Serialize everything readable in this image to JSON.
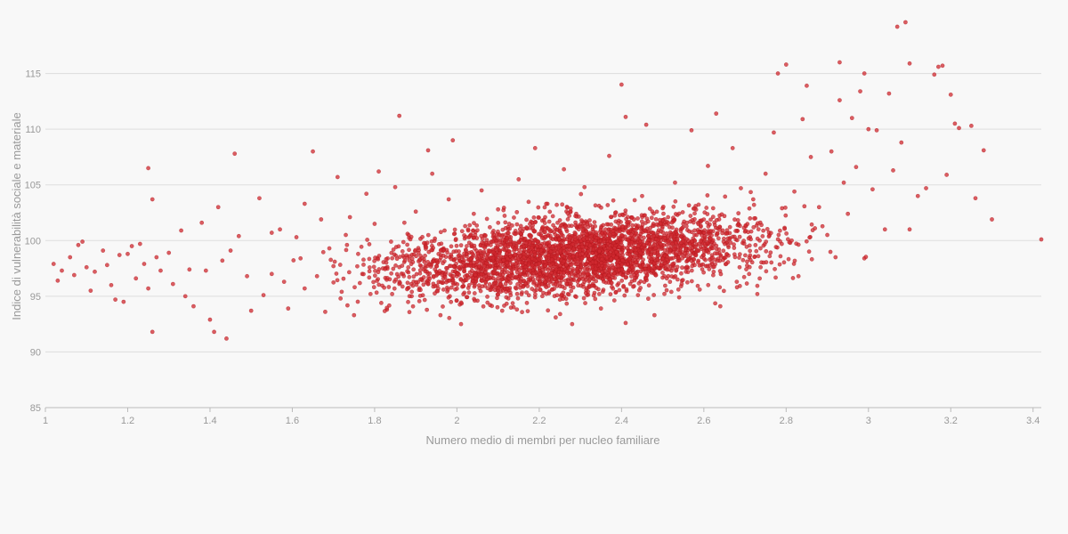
{
  "chart_data": {
    "type": "scatter",
    "title": "",
    "xlabel": "Numero medio di membri per nucleo familiare",
    "ylabel": "Indice di vulnerabilità sociale e materiale",
    "xlim": [
      1,
      3.42
    ],
    "ylim": [
      85,
      120
    ],
    "x_ticks": [
      1,
      1.2,
      1.4,
      1.6,
      1.8,
      2,
      2.2,
      2.4,
      2.6,
      2.8,
      3,
      3.2,
      3.4
    ],
    "y_ticks": [
      85,
      90,
      95,
      100,
      105,
      110,
      115
    ],
    "x_tick_labels": [
      "1",
      "1.2",
      "1.4",
      "1.6",
      "1.8",
      "2",
      "2.2",
      "2.4",
      "2.6",
      "2.8",
      "3",
      "3.2",
      "3.4"
    ],
    "y_tick_labels": [
      "85",
      "90",
      "95",
      "100",
      "105",
      "110",
      "115"
    ],
    "grid": "horizontal",
    "point_color": "#d02a30",
    "series": [
      {
        "points": [
          [
            1.02,
            97.9
          ],
          [
            1.03,
            96.4
          ],
          [
            1.04,
            97.3
          ],
          [
            1.06,
            98.5
          ],
          [
            1.07,
            96.9
          ],
          [
            1.08,
            99.6
          ],
          [
            1.09,
            99.9
          ],
          [
            1.1,
            97.6
          ],
          [
            1.12,
            97.2
          ],
          [
            1.11,
            95.5
          ],
          [
            1.14,
            99.1
          ],
          [
            1.15,
            97.8
          ],
          [
            1.16,
            96.0
          ],
          [
            1.17,
            94.7
          ],
          [
            1.18,
            98.7
          ],
          [
            1.19,
            94.5
          ],
          [
            1.2,
            98.8
          ],
          [
            1.21,
            99.5
          ],
          [
            1.22,
            96.6
          ],
          [
            1.23,
            99.7
          ],
          [
            1.24,
            97.9
          ],
          [
            1.25,
            95.7
          ],
          [
            1.25,
            106.5
          ],
          [
            1.26,
            103.7
          ],
          [
            1.26,
            91.8
          ],
          [
            1.27,
            98.5
          ],
          [
            1.28,
            97.3
          ],
          [
            1.3,
            98.9
          ],
          [
            1.31,
            96.1
          ],
          [
            1.33,
            100.9
          ],
          [
            1.34,
            95.0
          ],
          [
            1.35,
            97.4
          ],
          [
            1.36,
            94.1
          ],
          [
            1.38,
            101.6
          ],
          [
            1.39,
            97.3
          ],
          [
            1.4,
            92.9
          ],
          [
            1.41,
            91.8
          ],
          [
            1.42,
            103.0
          ],
          [
            1.43,
            98.2
          ],
          [
            1.44,
            91.2
          ],
          [
            1.45,
            99.1
          ],
          [
            1.46,
            107.8
          ],
          [
            1.47,
            100.4
          ],
          [
            1.49,
            96.8
          ],
          [
            1.5,
            93.7
          ],
          [
            1.52,
            103.8
          ],
          [
            1.53,
            95.1
          ],
          [
            1.55,
            100.7
          ],
          [
            1.55,
            97.0
          ],
          [
            1.57,
            101.0
          ],
          [
            1.58,
            96.3
          ],
          [
            1.59,
            93.9
          ],
          [
            1.61,
            100.3
          ],
          [
            1.62,
            98.4
          ],
          [
            1.63,
            103.3
          ],
          [
            1.63,
            95.7
          ],
          [
            1.65,
            108.0
          ],
          [
            1.66,
            96.8
          ],
          [
            1.67,
            101.9
          ],
          [
            1.68,
            93.6
          ],
          [
            1.69,
            99.3
          ],
          [
            1.7,
            97.7
          ],
          [
            1.71,
            105.7
          ],
          [
            1.72,
            95.4
          ],
          [
            1.73,
            100.5
          ],
          [
            1.74,
            102.1
          ],
          [
            1.75,
            93.3
          ],
          [
            1.76,
            98.8
          ],
          [
            1.77,
            97.0
          ],
          [
            1.78,
            104.2
          ],
          [
            1.79,
            95.2
          ],
          [
            1.8,
            101.5
          ],
          [
            1.81,
            106.2
          ],
          [
            1.82,
            97.5
          ],
          [
            1.83,
            93.8
          ],
          [
            1.84,
            99.9
          ],
          [
            1.85,
            104.8
          ],
          [
            1.86,
            111.2
          ],
          [
            1.86,
            96.1
          ],
          [
            1.88,
            100.6
          ],
          [
            1.89,
            95.0
          ],
          [
            1.9,
            102.6
          ],
          [
            1.92,
            98.3
          ],
          [
            1.93,
            108.1
          ],
          [
            1.94,
            106.0
          ],
          [
            1.95,
            97.2
          ],
          [
            1.96,
            93.3
          ],
          [
            1.97,
            100.9
          ],
          [
            1.98,
            103.7
          ],
          [
            1.99,
            109.0
          ],
          [
            2.0,
            96.8
          ],
          [
            2.01,
            92.5
          ],
          [
            2.02,
            101.3
          ],
          [
            2.03,
            98.9
          ],
          [
            2.05,
            94.6
          ],
          [
            2.06,
            104.5
          ],
          [
            2.07,
            99.6
          ],
          [
            2.09,
            97.1
          ],
          [
            2.1,
            102.8
          ],
          [
            2.11,
            93.7
          ],
          [
            2.12,
            100.2
          ],
          [
            2.13,
            96.2
          ],
          [
            2.15,
            105.5
          ],
          [
            2.16,
            98.0
          ],
          [
            2.17,
            94.4
          ],
          [
            2.18,
            101.7
          ],
          [
            2.19,
            108.3
          ],
          [
            2.2,
            97.6
          ],
          [
            2.21,
            95.3
          ],
          [
            2.22,
            103.3
          ],
          [
            2.23,
            99.2
          ],
          [
            2.24,
            93.1
          ],
          [
            2.25,
            100.8
          ],
          [
            2.26,
            106.4
          ],
          [
            2.27,
            96.5
          ],
          [
            2.28,
            92.5
          ],
          [
            2.29,
            102.4
          ],
          [
            2.3,
            98.5
          ],
          [
            2.31,
            104.8
          ],
          [
            2.32,
            95.8
          ],
          [
            2.33,
            101.0
          ],
          [
            2.34,
            97.0
          ],
          [
            2.35,
            93.9
          ],
          [
            2.36,
            99.7
          ],
          [
            2.37,
            107.6
          ],
          [
            2.38,
            103.6
          ],
          [
            2.39,
            96.0
          ],
          [
            2.4,
            114.0
          ],
          [
            2.41,
            111.1
          ],
          [
            2.41,
            92.6
          ],
          [
            2.42,
            98.9
          ],
          [
            2.43,
            101.9
          ],
          [
            2.44,
            95.1
          ],
          [
            2.45,
            104.0
          ],
          [
            2.46,
            110.4
          ],
          [
            2.47,
            97.5
          ],
          [
            2.48,
            93.3
          ],
          [
            2.49,
            100.3
          ],
          [
            2.5,
            102.9
          ],
          [
            2.51,
            96.6
          ],
          [
            2.52,
            99.1
          ],
          [
            2.53,
            105.2
          ],
          [
            2.54,
            94.9
          ],
          [
            2.55,
            101.5
          ],
          [
            2.56,
            98.2
          ],
          [
            2.57,
            109.9
          ],
          [
            2.58,
            103.1
          ],
          [
            2.59,
            95.6
          ],
          [
            2.6,
            100.0
          ],
          [
            2.61,
            106.7
          ],
          [
            2.62,
            97.9
          ],
          [
            2.63,
            111.4
          ],
          [
            2.64,
            94.1
          ],
          [
            2.65,
            102.2
          ],
          [
            2.66,
            99.4
          ],
          [
            2.67,
            108.3
          ],
          [
            2.68,
            96.3
          ],
          [
            2.69,
            104.7
          ],
          [
            2.7,
            100.8
          ],
          [
            2.71,
            97.0
          ],
          [
            2.72,
            103.7
          ],
          [
            2.73,
            95.2
          ],
          [
            2.74,
            101.4
          ],
          [
            2.75,
            106.0
          ],
          [
            2.76,
            98.6
          ],
          [
            2.77,
            109.7
          ],
          [
            2.78,
            115.0
          ],
          [
            2.79,
            102.9
          ],
          [
            2.8,
            115.8
          ],
          [
            2.81,
            99.8
          ],
          [
            2.82,
            104.4
          ],
          [
            2.83,
            96.8
          ],
          [
            2.84,
            110.9
          ],
          [
            2.85,
            113.9
          ],
          [
            2.86,
            107.5
          ],
          [
            2.87,
            101.1
          ],
          [
            2.88,
            103.0
          ],
          [
            2.9,
            100.5
          ],
          [
            2.91,
            108.0
          ],
          [
            2.92,
            98.5
          ],
          [
            2.93,
            112.6
          ],
          [
            2.93,
            116.0
          ],
          [
            2.94,
            105.2
          ],
          [
            2.95,
            102.4
          ],
          [
            2.96,
            111.0
          ],
          [
            2.97,
            106.6
          ],
          [
            2.98,
            113.4
          ],
          [
            2.99,
            115.0
          ],
          [
            2.99,
            98.4
          ],
          [
            3.0,
            110.0
          ],
          [
            3.01,
            104.6
          ],
          [
            3.02,
            109.9
          ],
          [
            3.04,
            101.0
          ],
          [
            3.05,
            113.2
          ],
          [
            3.06,
            106.3
          ],
          [
            3.07,
            119.2
          ],
          [
            3.08,
            108.8
          ],
          [
            3.09,
            119.6
          ],
          [
            3.1,
            101.0
          ],
          [
            3.1,
            115.9
          ],
          [
            3.12,
            104.0
          ],
          [
            3.14,
            104.7
          ],
          [
            3.16,
            114.9
          ],
          [
            3.17,
            115.6
          ],
          [
            3.18,
            115.7
          ],
          [
            3.19,
            105.9
          ],
          [
            3.2,
            113.1
          ],
          [
            3.21,
            110.5
          ],
          [
            3.22,
            110.1
          ],
          [
            3.25,
            110.3
          ],
          [
            3.26,
            103.8
          ],
          [
            3.28,
            108.1
          ],
          [
            3.3,
            101.9
          ],
          [
            3.42,
            100.1
          ]
        ]
      }
    ]
  }
}
